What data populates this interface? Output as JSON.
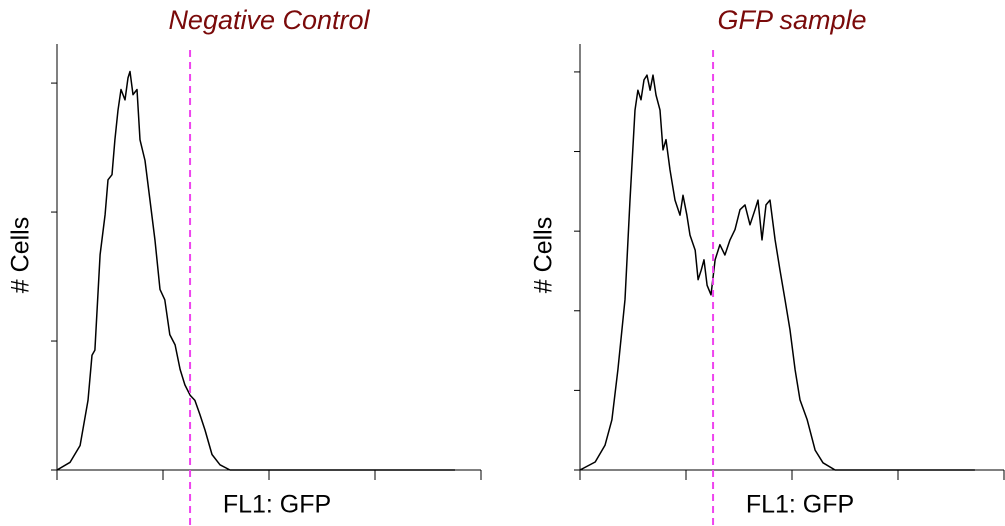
{
  "chart_data": [
    {
      "type": "line",
      "title": "Negative Control",
      "xlabel": "FL1: GFP",
      "ylabel": "# Cells",
      "xscale": "log",
      "xlim": [
        1,
        10000
      ],
      "xticks": [
        1,
        10,
        100,
        1000,
        10000
      ],
      "ylim": [
        0,
        3.21
      ],
      "yticks": [
        0,
        1,
        2,
        3
      ],
      "color": "#000000",
      "threshold": 18,
      "threshold_color": "#ee44ee",
      "x": [
        1,
        1.33,
        1.65,
        1.96,
        2.14,
        2.28,
        2.55,
        2.84,
        3.03,
        3.3,
        3.52,
        3.76,
        4.02,
        4.38,
        4.68,
        4.88,
        5.21,
        5.69,
        6.07,
        6.76,
        7.54,
        8.41,
        9.37,
        10.4,
        11.6,
        13,
        14.5,
        16.1,
        18,
        20,
        22.3,
        24.9,
        29,
        34.5,
        42.9,
        196,
        5690
      ],
      "values": [
        0,
        0.06,
        0.19,
        0.54,
        0.89,
        0.93,
        1.67,
        1.98,
        2.25,
        2.29,
        2.56,
        2.79,
        2.95,
        2.87,
        3.04,
        3.09,
        2.91,
        2.95,
        2.56,
        2.4,
        2.09,
        1.78,
        1.4,
        1.32,
        1.05,
        0.97,
        0.78,
        0.66,
        0.58,
        0.54,
        0.43,
        0.31,
        0.12,
        0.04,
        0,
        0,
        0
      ]
    },
    {
      "type": "line",
      "title": "GFP sample",
      "xlabel": "FL1: GFP",
      "ylabel": "# Cells",
      "xscale": "log",
      "xlim": [
        1,
        10000
      ],
      "xticks": [
        1,
        10,
        100,
        1000,
        10000
      ],
      "ylim": [
        0,
        5.2
      ],
      "yticks": [
        0,
        1,
        2,
        3,
        4,
        5
      ],
      "color": "#000000",
      "threshold": 18,
      "threshold_color": "#ee44ee",
      "x": [
        1,
        1.39,
        1.72,
        2,
        2.28,
        2.66,
        2.96,
        3.3,
        3.52,
        3.76,
        4.02,
        4.29,
        4.58,
        4.88,
        5.21,
        5.69,
        6.07,
        6.48,
        7.06,
        7.87,
        8.78,
        9.37,
        10.2,
        10.9,
        12.2,
        13,
        13.9,
        14.8,
        15.8,
        17.2,
        18.8,
        20.9,
        23.3,
        26,
        29,
        32.3,
        36,
        40.2,
        44.8,
        47.8,
        52.1,
        56.9,
        62,
        69.2,
        77.1,
        85.9,
        95.7,
        107,
        119,
        139,
        165,
        196,
        255,
        5320
      ],
      "values": [
        0,
        0.1,
        0.31,
        0.63,
        1.26,
        2.14,
        3.39,
        4.52,
        4.77,
        4.65,
        4.9,
        4.96,
        4.77,
        4.96,
        4.71,
        4.52,
        4.02,
        4.15,
        3.77,
        3.39,
        3.2,
        3.45,
        3.2,
        2.95,
        2.76,
        2.39,
        2.51,
        2.64,
        2.32,
        2.2,
        2.64,
        2.83,
        2.7,
        2.89,
        3.02,
        3.27,
        3.33,
        3.08,
        3.27,
        3.39,
        2.89,
        3.33,
        3.39,
        2.89,
        2.51,
        2.14,
        1.76,
        1.26,
        0.88,
        0.63,
        0.25,
        0.09,
        0,
        0
      ]
    }
  ]
}
